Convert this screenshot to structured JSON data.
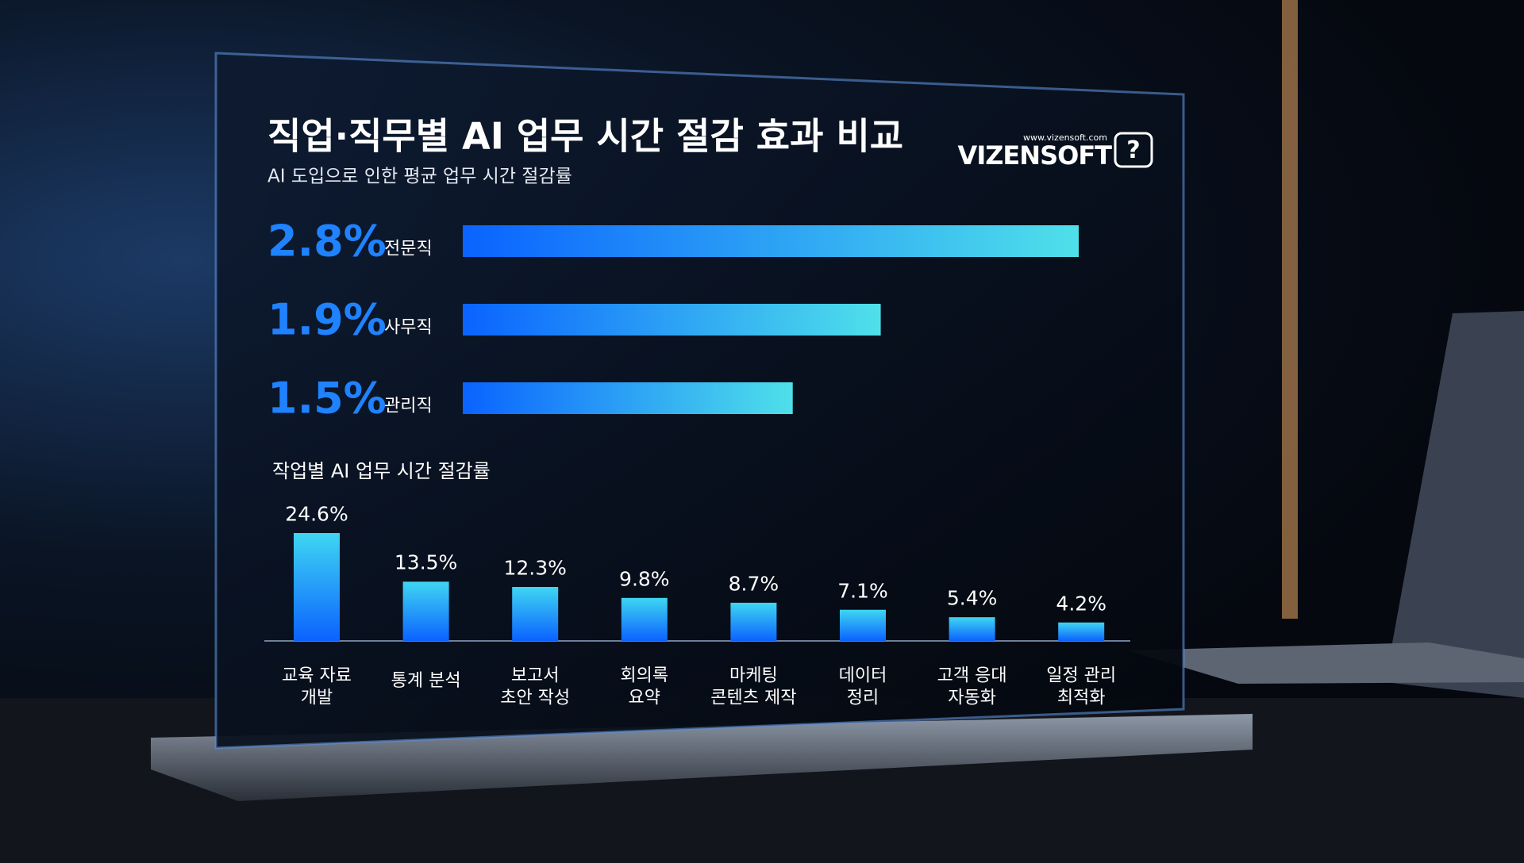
{
  "header": {
    "title": "직업·직무별 AI 업무 시간 절감 효과 비교",
    "subtitle": "AI 도입으로 인한 평균 업무 시간 절감률",
    "logo": "VIZENSOFT",
    "url": "www.vizensoft.com"
  },
  "chart_data": [
    {
      "type": "hbar",
      "categories": [
        "전문직",
        "사무직",
        "관리직"
      ],
      "values": [
        2.8,
        1.9,
        1.5
      ],
      "value_labels": [
        "2.8%",
        "1.9%",
        "1.5%"
      ],
      "colors": [
        "#0a63ff",
        "#4fe0ea"
      ]
    },
    {
      "type": "bar",
      "title": "작업별 AI 업무 시간 절감률",
      "categories": [
        "교육 자료\n개발",
        "통계 분석",
        "보고서\n초안 작성",
        "회의록\n요약",
        "마케팅\n콘텐츠 제작",
        "데이터\n정리",
        "고객 응대\n자동화",
        "일정 관리\n최적화"
      ],
      "values": [
        24.6,
        13.5,
        12.3,
        9.8,
        8.7,
        7.1,
        5.4,
        4.2
      ],
      "value_labels": [
        "24.6%",
        "13.5%",
        "12.3%",
        "9.8%",
        "8.7%",
        "7.1%",
        "5.4%",
        "4.2%"
      ],
      "colors": [
        "#3fd6f2",
        "#0b62ff"
      ]
    }
  ]
}
